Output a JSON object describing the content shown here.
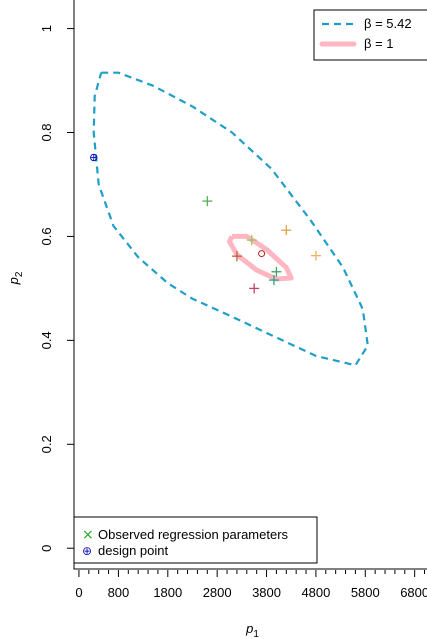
{
  "chart_data": {
    "type": "scatter",
    "xlabel": "p",
    "xlabel_sub": "1",
    "ylabel": "p",
    "ylabel_sub": "2",
    "xlim": [
      -100,
      7050
    ],
    "ylim": [
      -0.04,
      1.055
    ],
    "x_ticks": [
      0,
      800,
      1800,
      2800,
      3800,
      4800,
      5800,
      6800
    ],
    "x_minor_step": 200,
    "y_ticks": [
      0,
      0.2,
      0.4,
      0.6,
      0.8,
      1
    ],
    "y_tick_labels": [
      "0",
      "0.2",
      "0.4",
      "0.6",
      "0.8",
      "1"
    ],
    "grid": false,
    "ellipses": [
      {
        "legend_label": "β = 5.42",
        "style": "dashed",
        "color": "#1f9fc8",
        "points": [
          [
            450,
            0.915
          ],
          [
            800,
            0.915
          ],
          [
            1500,
            0.89
          ],
          [
            2300,
            0.85
          ],
          [
            3100,
            0.8
          ],
          [
            3900,
            0.73
          ],
          [
            4700,
            0.63
          ],
          [
            5350,
            0.54
          ],
          [
            5750,
            0.46
          ],
          [
            5850,
            0.39
          ],
          [
            5600,
            0.352
          ],
          [
            4800,
            0.37
          ],
          [
            3900,
            0.41
          ],
          [
            3000,
            0.45
          ],
          [
            2300,
            0.48
          ],
          [
            1800,
            0.51
          ],
          [
            1200,
            0.56
          ],
          [
            700,
            0.62
          ],
          [
            400,
            0.7
          ],
          [
            300,
            0.8
          ],
          [
            320,
            0.87
          ],
          [
            450,
            0.915
          ]
        ]
      },
      {
        "legend_label": "β = 1",
        "style": "solid",
        "color": "#ffb6c1",
        "points": [
          [
            3100,
            0.6
          ],
          [
            3400,
            0.6
          ],
          [
            3800,
            0.575
          ],
          [
            4200,
            0.54
          ],
          [
            4300,
            0.52
          ],
          [
            4000,
            0.518
          ],
          [
            3600,
            0.535
          ],
          [
            3200,
            0.565
          ],
          [
            3050,
            0.59
          ],
          [
            3100,
            0.6
          ]
        ]
      }
    ],
    "observed_points": [
      {
        "x": 2600,
        "y": 0.668,
        "color": "#55b055"
      },
      {
        "x": 3500,
        "y": 0.593,
        "color": "#a0c060"
      },
      {
        "x": 4200,
        "y": 0.612,
        "color": "#e0a050"
      },
      {
        "x": 4800,
        "y": 0.563,
        "color": "#f0b060"
      },
      {
        "x": 3200,
        "y": 0.562,
        "color": "#c06040"
      },
      {
        "x": 4000,
        "y": 0.532,
        "color": "#40a060"
      },
      {
        "x": 3950,
        "y": 0.516,
        "color": "#30a080"
      },
      {
        "x": 3550,
        "y": 0.5,
        "color": "#c04070"
      }
    ],
    "estimate_point": {
      "x": 3700,
      "y": 0.567,
      "color": "#b02020"
    },
    "design_point": {
      "x": 300,
      "y": 0.752,
      "color": "#1010c0"
    },
    "legend_top": [
      {
        "label": "β = 5.42"
      },
      {
        "label": "β = 1"
      }
    ],
    "legend_bottom": [
      {
        "label": "Observed regression parameters",
        "symbol": "×",
        "color": "#22aa22"
      },
      {
        "label": "design point",
        "symbol": "⊕",
        "color": "#1010c0"
      }
    ]
  }
}
